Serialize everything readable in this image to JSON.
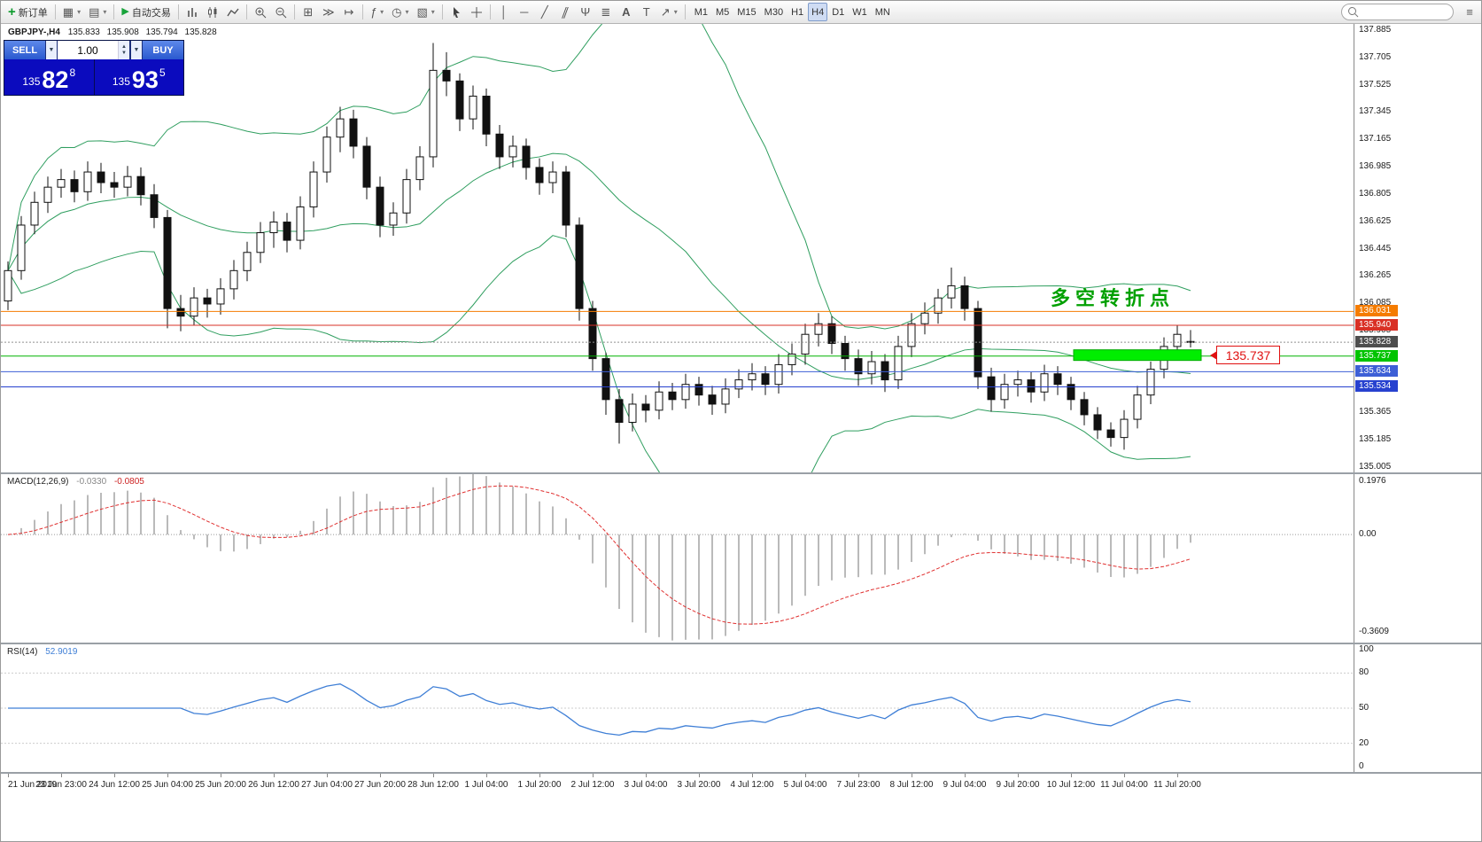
{
  "toolbar": {
    "new_order_label": "新订单",
    "auto_trading_label": "自动交易",
    "text_tool": "A",
    "label_tool": "T",
    "timeframes": [
      "M1",
      "M5",
      "M15",
      "M30",
      "H1",
      "H4",
      "D1",
      "W1",
      "MN"
    ],
    "active_timeframe": "H4",
    "search_placeholder": ""
  },
  "symbol_header": {
    "symbol": "GBPJPY-,H4",
    "open": "135.833",
    "high": "135.908",
    "low": "135.794",
    "close": "135.828"
  },
  "trade_panel": {
    "sell_label": "SELL",
    "buy_label": "BUY",
    "volume": "1.00",
    "sell_price": {
      "prefix": "135",
      "big": "82",
      "sup": "8"
    },
    "buy_price": {
      "prefix": "135",
      "big": "93",
      "sup": "5"
    }
  },
  "annotation": {
    "text": "多空转折点",
    "color": "#00a000"
  },
  "callout": {
    "text": "135.737"
  },
  "macd": {
    "title": "MACD(12,26,9)",
    "value_main": "-0.0330",
    "value_signal": "-0.0805",
    "axis": [
      {
        "label": "0.1976",
        "value": 0.1976
      },
      {
        "label": "0.00",
        "value": 0
      },
      {
        "label": "-0.3609",
        "value": -0.3609
      }
    ]
  },
  "rsi": {
    "title": "RSI(14)",
    "value": "52.9019",
    "axis": [
      {
        "label": "100",
        "value": 100
      },
      {
        "label": "80",
        "value": 80
      },
      {
        "label": "50",
        "value": 50
      },
      {
        "label": "20",
        "value": 20
      },
      {
        "label": "0",
        "value": 0
      }
    ],
    "level_lines": [
      80,
      50,
      20
    ]
  },
  "price_axis": {
    "ticks": [
      "137.885",
      "137.705",
      "137.525",
      "137.345",
      "137.165",
      "136.985",
      "136.805",
      "136.625",
      "136.445",
      "136.265",
      "136.085",
      "135.905",
      "135.365",
      "135.185",
      "135.005"
    ],
    "levels": [
      {
        "label": "136.031",
        "value": 136.031,
        "bg": "#f57c00",
        "fg": "#ffffff",
        "line": "solid",
        "line_color": "#f57c00"
      },
      {
        "label": "135.940",
        "value": 135.94,
        "bg": "#d93025",
        "fg": "#ffffff",
        "line": "solid",
        "line_color": "#d93025"
      },
      {
        "label": "135.828",
        "value": 135.828,
        "bg": "#4d4d4d",
        "fg": "#ffffff",
        "line": "dotted",
        "line_color": "#909090"
      },
      {
        "label": "135.737",
        "value": 135.737,
        "bg": "#00c400",
        "fg": "#ffffff",
        "line": "solid",
        "line_color": "#00b400"
      },
      {
        "label": "135.634",
        "value": 135.634,
        "bg": "#3d5fd6",
        "fg": "#ffffff",
        "line": "solid",
        "line_color": "#3d5fd6"
      },
      {
        "label": "135.534",
        "value": 135.534,
        "bg": "#2741cf",
        "fg": "#ffffff",
        "line": "solid",
        "line_color": "#2741cf"
      }
    ]
  },
  "time_axis": {
    "step": 4,
    "labels": [
      "21 Jun 2019",
      "23 Jun 23:00",
      "24 Jun 12:00",
      "25 Jun 04:00",
      "25 Jun 20:00",
      "26 Jun 12:00",
      "27 Jun 04:00",
      "27 Jun 20:00",
      "28 Jun 12:00",
      "1 Jul 04:00",
      "1 Jul 20:00",
      "2 Jul 12:00",
      "3 Jul 04:00",
      "3 Jul 20:00",
      "4 Jul 12:00",
      "5 Jul 04:00",
      "7 Jul 23:00",
      "8 Jul 12:00",
      "9 Jul 04:00",
      "9 Jul 20:00",
      "10 Jul 12:00",
      "11 Jul 04:00",
      "11 Jul 20:00"
    ]
  },
  "chart_data": {
    "type": "candlestick",
    "symbol": "GBPJPY-",
    "timeframe": "H4",
    "title": "GBPJPY-,H4",
    "price_range": [
      135.005,
      137.885
    ],
    "indicators": [
      {
        "name": "Bollinger Bands",
        "period": 20,
        "deviation": 2,
        "color": "#2f9e5f"
      },
      {
        "name": "MACD",
        "fast": 12,
        "slow": 26,
        "signal": 9,
        "current_main": -0.033,
        "current_signal": -0.0805
      },
      {
        "name": "RSI",
        "period": 14,
        "current": 52.9019
      }
    ],
    "highlight_zone": {
      "from_index": 80.2,
      "to_index": 89.8,
      "price_top": 135.778,
      "price_bottom": 135.708,
      "color": "#00ee00"
    },
    "candles": [
      [
        136.1,
        136.36,
        136.04,
        136.3
      ],
      [
        136.3,
        136.66,
        136.24,
        136.6
      ],
      [
        136.6,
        136.82,
        136.54,
        136.75
      ],
      [
        136.75,
        136.92,
        136.68,
        136.85
      ],
      [
        136.85,
        136.97,
        136.78,
        136.9
      ],
      [
        136.9,
        136.96,
        136.75,
        136.82
      ],
      [
        136.82,
        137.02,
        136.76,
        136.95
      ],
      [
        136.95,
        137.01,
        136.81,
        136.88
      ],
      [
        136.88,
        136.95,
        136.78,
        136.85
      ],
      [
        136.85,
        136.99,
        136.79,
        136.92
      ],
      [
        136.92,
        136.98,
        136.73,
        136.8
      ],
      [
        136.8,
        136.87,
        136.58,
        136.65
      ],
      [
        136.65,
        136.7,
        135.92,
        136.05
      ],
      [
        136.05,
        136.14,
        135.9,
        136.0
      ],
      [
        136.0,
        136.19,
        135.94,
        136.12
      ],
      [
        136.12,
        136.18,
        135.99,
        136.08
      ],
      [
        136.08,
        136.25,
        136.01,
        136.18
      ],
      [
        136.18,
        136.37,
        136.11,
        136.3
      ],
      [
        136.3,
        136.49,
        136.23,
        136.42
      ],
      [
        136.42,
        136.62,
        136.35,
        136.55
      ],
      [
        136.55,
        136.69,
        136.45,
        136.62
      ],
      [
        136.62,
        136.68,
        136.42,
        136.5
      ],
      [
        136.5,
        136.79,
        136.44,
        136.72
      ],
      [
        136.72,
        137.02,
        136.65,
        136.95
      ],
      [
        136.95,
        137.25,
        136.88,
        137.18
      ],
      [
        137.18,
        137.38,
        137.08,
        137.3
      ],
      [
        137.3,
        137.36,
        137.04,
        137.12
      ],
      [
        137.12,
        137.18,
        136.77,
        136.85
      ],
      [
        136.85,
        136.92,
        136.52,
        136.6
      ],
      [
        136.6,
        136.75,
        136.53,
        136.68
      ],
      [
        136.68,
        136.97,
        136.61,
        136.9
      ],
      [
        136.9,
        137.12,
        136.83,
        137.05
      ],
      [
        137.05,
        137.8,
        136.98,
        137.62
      ],
      [
        137.62,
        137.74,
        137.45,
        137.55
      ],
      [
        137.55,
        137.6,
        137.22,
        137.3
      ],
      [
        137.3,
        137.52,
        137.23,
        137.45
      ],
      [
        137.45,
        137.5,
        137.12,
        137.2
      ],
      [
        137.2,
        137.26,
        136.97,
        137.05
      ],
      [
        137.05,
        137.19,
        136.98,
        137.12
      ],
      [
        137.12,
        137.17,
        136.9,
        136.98
      ],
      [
        136.98,
        137.04,
        136.8,
        136.88
      ],
      [
        136.88,
        137.02,
        136.81,
        136.95
      ],
      [
        136.95,
        136.99,
        136.52,
        136.6
      ],
      [
        136.6,
        136.65,
        135.97,
        136.05
      ],
      [
        136.05,
        136.1,
        135.64,
        135.72
      ],
      [
        135.72,
        135.76,
        135.35,
        135.45
      ],
      [
        135.45,
        135.52,
        135.16,
        135.3
      ],
      [
        135.3,
        135.49,
        135.24,
        135.42
      ],
      [
        135.42,
        135.48,
        135.3,
        135.38
      ],
      [
        135.38,
        135.57,
        135.32,
        135.5
      ],
      [
        135.5,
        135.56,
        135.38,
        135.45
      ],
      [
        135.45,
        135.62,
        135.39,
        135.55
      ],
      [
        135.55,
        135.6,
        135.41,
        135.48
      ],
      [
        135.48,
        135.54,
        135.35,
        135.42
      ],
      [
        135.42,
        135.59,
        135.36,
        135.52
      ],
      [
        135.52,
        135.65,
        135.46,
        135.58
      ],
      [
        135.58,
        135.69,
        135.51,
        135.62
      ],
      [
        135.62,
        135.67,
        135.48,
        135.55
      ],
      [
        135.55,
        135.75,
        135.49,
        135.68
      ],
      [
        135.68,
        135.82,
        135.61,
        135.75
      ],
      [
        135.75,
        135.95,
        135.68,
        135.88
      ],
      [
        135.88,
        136.02,
        135.8,
        135.95
      ],
      [
        135.95,
        136.0,
        135.75,
        135.82
      ],
      [
        135.82,
        135.87,
        135.64,
        135.72
      ],
      [
        135.72,
        135.78,
        135.54,
        135.62
      ],
      [
        135.62,
        135.77,
        135.55,
        135.7
      ],
      [
        135.7,
        135.75,
        135.5,
        135.58
      ],
      [
        135.58,
        135.87,
        135.52,
        135.8
      ],
      [
        135.8,
        136.02,
        135.73,
        135.95
      ],
      [
        135.95,
        136.09,
        135.88,
        136.02
      ],
      [
        136.02,
        136.18,
        135.95,
        136.12
      ],
      [
        136.12,
        136.32,
        136.05,
        136.2
      ],
      [
        136.2,
        136.26,
        135.97,
        136.05
      ],
      [
        136.05,
        136.1,
        135.52,
        135.6
      ],
      [
        135.6,
        135.66,
        135.37,
        135.45
      ],
      [
        135.45,
        135.62,
        135.39,
        135.55
      ],
      [
        135.55,
        135.64,
        135.47,
        135.58
      ],
      [
        135.58,
        135.63,
        135.43,
        135.5
      ],
      [
        135.5,
        135.68,
        135.44,
        135.62
      ],
      [
        135.62,
        135.67,
        135.48,
        135.55
      ],
      [
        135.55,
        135.6,
        135.38,
        135.45
      ],
      [
        135.45,
        135.5,
        135.28,
        135.35
      ],
      [
        135.35,
        135.4,
        135.19,
        135.25
      ],
      [
        135.25,
        135.3,
        135.14,
        135.2
      ],
      [
        135.2,
        135.38,
        135.12,
        135.32
      ],
      [
        135.32,
        135.54,
        135.26,
        135.48
      ],
      [
        135.48,
        135.7,
        135.42,
        135.65
      ],
      [
        135.65,
        135.86,
        135.59,
        135.8
      ],
      [
        135.8,
        135.94,
        135.74,
        135.88
      ],
      [
        135.833,
        135.908,
        135.794,
        135.828
      ]
    ]
  }
}
